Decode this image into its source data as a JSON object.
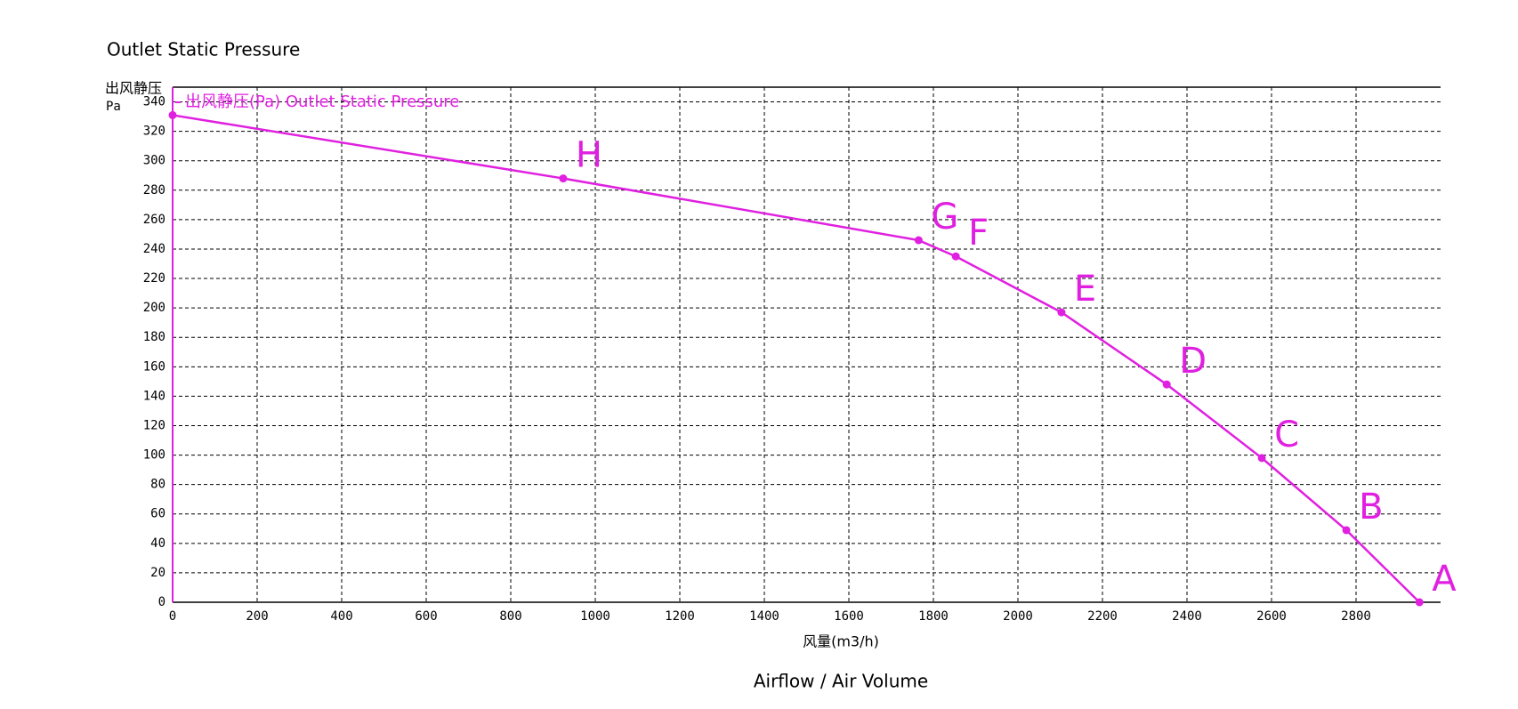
{
  "chart_data": {
    "type": "line",
    "title": "Outlet Static Pressure",
    "ylabel": [
      "出风静压",
      "Pa"
    ],
    "xlabel": "风量(m3/h)",
    "subtitle": "Airflow / Air Volume",
    "xlim": [
      0,
      3000
    ],
    "xticks": [
      0,
      200,
      400,
      600,
      800,
      1000,
      1200,
      1400,
      1600,
      1800,
      2000,
      2200,
      2400,
      2600,
      2800
    ],
    "ylim": [
      0,
      350
    ],
    "yticks": [
      0,
      20,
      40,
      60,
      80,
      100,
      120,
      140,
      160,
      180,
      200,
      220,
      240,
      260,
      280,
      300,
      320,
      340
    ],
    "grid": true,
    "series": [
      {
        "name": "出风静压(Pa) Outlet Static Pressure",
        "color": "#e020e0",
        "x": [
          0,
          924,
          1765,
          1853,
          2103,
          2352,
          2577,
          2777,
          2950
        ],
        "values": [
          331,
          288,
          246,
          235,
          197,
          148,
          98,
          49,
          0
        ],
        "point_labels": [
          null,
          "H",
          "G",
          "F",
          "E",
          "D",
          "C",
          "B",
          "A"
        ]
      }
    ]
  }
}
